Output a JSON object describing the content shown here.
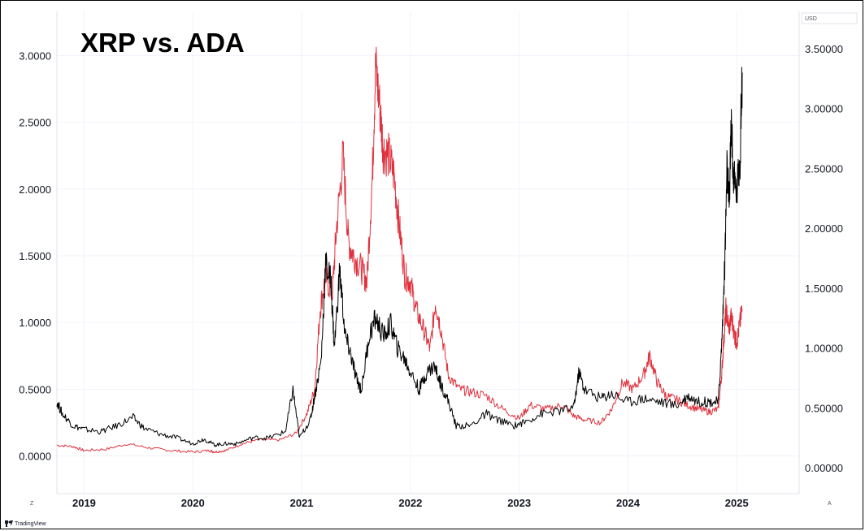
{
  "chart_data": {
    "type": "line",
    "title": "XRP vs. ADA",
    "currency_label": "USD",
    "x_ticks": [
      "2019",
      "2020",
      "2021",
      "2022",
      "2023",
      "2024",
      "2025"
    ],
    "x_range": [
      2018.75,
      2025.55
    ],
    "left_axis": {
      "ticks": [
        "3.0000",
        "2.5000",
        "2.0000",
        "1.5000",
        "1.0000",
        "0.5000",
        "0.0000"
      ],
      "tick_values": [
        3.0,
        2.5,
        2.0,
        1.5,
        1.0,
        0.5,
        0.0
      ],
      "ylim": [
        -0.1,
        3.05
      ]
    },
    "right_axis": {
      "ticks": [
        "3.50000",
        "3.00000",
        "2.50000",
        "2.00000",
        "1.50000",
        "1.00000",
        "0.50000",
        "0.00000"
      ],
      "tick_values": [
        3.5,
        3.0,
        2.5,
        2.0,
        1.5,
        1.0,
        0.5,
        0.0
      ],
      "ylim": [
        -0.1,
        3.6
      ]
    },
    "series": [
      {
        "color": "#e0303c",
        "axis": "left",
        "points": [
          [
            2018.75,
            0.08
          ],
          [
            2018.9,
            0.07
          ],
          [
            2019.0,
            0.04
          ],
          [
            2019.2,
            0.05
          ],
          [
            2019.4,
            0.09
          ],
          [
            2019.6,
            0.06
          ],
          [
            2019.8,
            0.04
          ],
          [
            2020.0,
            0.03
          ],
          [
            2020.15,
            0.04
          ],
          [
            2020.2,
            0.03
          ],
          [
            2020.3,
            0.04
          ],
          [
            2020.45,
            0.09
          ],
          [
            2020.6,
            0.12
          ],
          [
            2020.8,
            0.12
          ],
          [
            2020.95,
            0.17
          ],
          [
            2021.05,
            0.32
          ],
          [
            2021.12,
            0.5
          ],
          [
            2021.17,
            1.1
          ],
          [
            2021.22,
            1.35
          ],
          [
            2021.28,
            1.2
          ],
          [
            2021.32,
            1.7
          ],
          [
            2021.38,
            2.25
          ],
          [
            2021.43,
            1.6
          ],
          [
            2021.48,
            1.5
          ],
          [
            2021.55,
            1.4
          ],
          [
            2021.6,
            1.3
          ],
          [
            2021.65,
            2.1
          ],
          [
            2021.68,
            2.93
          ],
          [
            2021.72,
            2.6
          ],
          [
            2021.75,
            2.3
          ],
          [
            2021.8,
            2.25
          ],
          [
            2021.85,
            2.1
          ],
          [
            2021.9,
            1.7
          ],
          [
            2021.95,
            1.35
          ],
          [
            2022.0,
            1.3
          ],
          [
            2022.05,
            1.1
          ],
          [
            2022.12,
            0.95
          ],
          [
            2022.18,
            0.8
          ],
          [
            2022.23,
            1.15
          ],
          [
            2022.28,
            0.95
          ],
          [
            2022.35,
            0.6
          ],
          [
            2022.45,
            0.5
          ],
          [
            2022.55,
            0.48
          ],
          [
            2022.7,
            0.45
          ],
          [
            2022.85,
            0.35
          ],
          [
            2023.0,
            0.28
          ],
          [
            2023.1,
            0.38
          ],
          [
            2023.25,
            0.35
          ],
          [
            2023.4,
            0.38
          ],
          [
            2023.5,
            0.3
          ],
          [
            2023.6,
            0.27
          ],
          [
            2023.75,
            0.25
          ],
          [
            2023.85,
            0.35
          ],
          [
            2023.95,
            0.55
          ],
          [
            2024.05,
            0.5
          ],
          [
            2024.15,
            0.62
          ],
          [
            2024.2,
            0.75
          ],
          [
            2024.27,
            0.55
          ],
          [
            2024.35,
            0.45
          ],
          [
            2024.45,
            0.42
          ],
          [
            2024.55,
            0.38
          ],
          [
            2024.65,
            0.35
          ],
          [
            2024.75,
            0.33
          ],
          [
            2024.83,
            0.35
          ],
          [
            2024.86,
            0.6
          ],
          [
            2024.88,
            0.85
          ],
          [
            2024.9,
            1.1
          ],
          [
            2024.93,
            0.95
          ],
          [
            2024.95,
            1.05
          ],
          [
            2024.98,
            0.9
          ],
          [
            2025.0,
            0.85
          ],
          [
            2025.03,
            1.0
          ],
          [
            2025.05,
            1.1
          ]
        ]
      },
      {
        "color": "#000000",
        "axis": "right",
        "points": [
          [
            2018.75,
            0.55
          ],
          [
            2018.8,
            0.45
          ],
          [
            2018.9,
            0.35
          ],
          [
            2019.0,
            0.32
          ],
          [
            2019.15,
            0.3
          ],
          [
            2019.3,
            0.35
          ],
          [
            2019.45,
            0.42
          ],
          [
            2019.55,
            0.33
          ],
          [
            2019.7,
            0.28
          ],
          [
            2019.85,
            0.25
          ],
          [
            2020.0,
            0.2
          ],
          [
            2020.1,
            0.24
          ],
          [
            2020.2,
            0.19
          ],
          [
            2020.3,
            0.2
          ],
          [
            2020.4,
            0.2
          ],
          [
            2020.55,
            0.25
          ],
          [
            2020.7,
            0.25
          ],
          [
            2020.85,
            0.3
          ],
          [
            2020.92,
            0.65
          ],
          [
            2020.98,
            0.25
          ],
          [
            2021.08,
            0.4
          ],
          [
            2021.12,
            0.6
          ],
          [
            2021.18,
            0.9
          ],
          [
            2021.22,
            1.7
          ],
          [
            2021.27,
            1.55
          ],
          [
            2021.3,
            1.0
          ],
          [
            2021.35,
            1.65
          ],
          [
            2021.4,
            1.1
          ],
          [
            2021.45,
            0.95
          ],
          [
            2021.5,
            0.75
          ],
          [
            2021.55,
            0.65
          ],
          [
            2021.62,
            1.1
          ],
          [
            2021.68,
            1.25
          ],
          [
            2021.75,
            1.1
          ],
          [
            2021.82,
            1.2
          ],
          [
            2021.88,
            1.0
          ],
          [
            2021.95,
            0.9
          ],
          [
            2022.0,
            0.8
          ],
          [
            2022.08,
            0.65
          ],
          [
            2022.15,
            0.8
          ],
          [
            2022.22,
            0.85
          ],
          [
            2022.28,
            0.7
          ],
          [
            2022.35,
            0.55
          ],
          [
            2022.42,
            0.35
          ],
          [
            2022.55,
            0.35
          ],
          [
            2022.7,
            0.45
          ],
          [
            2022.8,
            0.4
          ],
          [
            2022.95,
            0.35
          ],
          [
            2023.05,
            0.38
          ],
          [
            2023.2,
            0.45
          ],
          [
            2023.35,
            0.47
          ],
          [
            2023.5,
            0.5
          ],
          [
            2023.55,
            0.8
          ],
          [
            2023.6,
            0.65
          ],
          [
            2023.75,
            0.58
          ],
          [
            2023.85,
            0.62
          ],
          [
            2024.0,
            0.55
          ],
          [
            2024.15,
            0.58
          ],
          [
            2024.3,
            0.55
          ],
          [
            2024.45,
            0.52
          ],
          [
            2024.55,
            0.6
          ],
          [
            2024.65,
            0.55
          ],
          [
            2024.75,
            0.55
          ],
          [
            2024.83,
            0.55
          ],
          [
            2024.86,
            1.0
          ],
          [
            2024.89,
            1.7
          ],
          [
            2024.91,
            2.5
          ],
          [
            2024.93,
            2.2
          ],
          [
            2024.95,
            2.9
          ],
          [
            2024.97,
            2.4
          ],
          [
            2025.0,
            2.3
          ],
          [
            2025.03,
            2.6
          ],
          [
            2025.05,
            3.3
          ]
        ]
      }
    ],
    "watermark_left": "Z",
    "watermark_right": "A",
    "brand": "TradingView"
  }
}
